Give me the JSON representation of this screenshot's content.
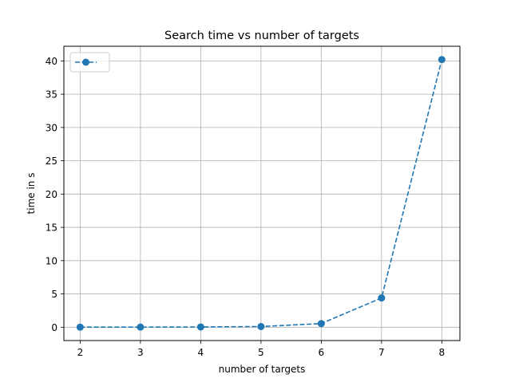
{
  "chart_data": {
    "type": "line",
    "title": "Search time vs number of targets",
    "xlabel": "number of targets",
    "ylabel": "time in s",
    "x": [
      2,
      3,
      4,
      5,
      6,
      7,
      8
    ],
    "series": [
      {
        "values": [
          0.01,
          0.02,
          0.04,
          0.1,
          0.55,
          4.4,
          40.2
        ],
        "color": "#1f77b4",
        "line_style": "dashed",
        "marker": "circle"
      }
    ],
    "xlim": [
      1.73,
      8.3
    ],
    "ylim": [
      -2.0,
      42.2
    ],
    "xticks": [
      2,
      3,
      4,
      5,
      6,
      7,
      8
    ],
    "yticks": [
      0,
      5,
      10,
      15,
      20,
      25,
      30,
      35,
      40
    ],
    "grid": true,
    "legend": {
      "placement": "top-left",
      "entries": [
        ""
      ]
    }
  }
}
